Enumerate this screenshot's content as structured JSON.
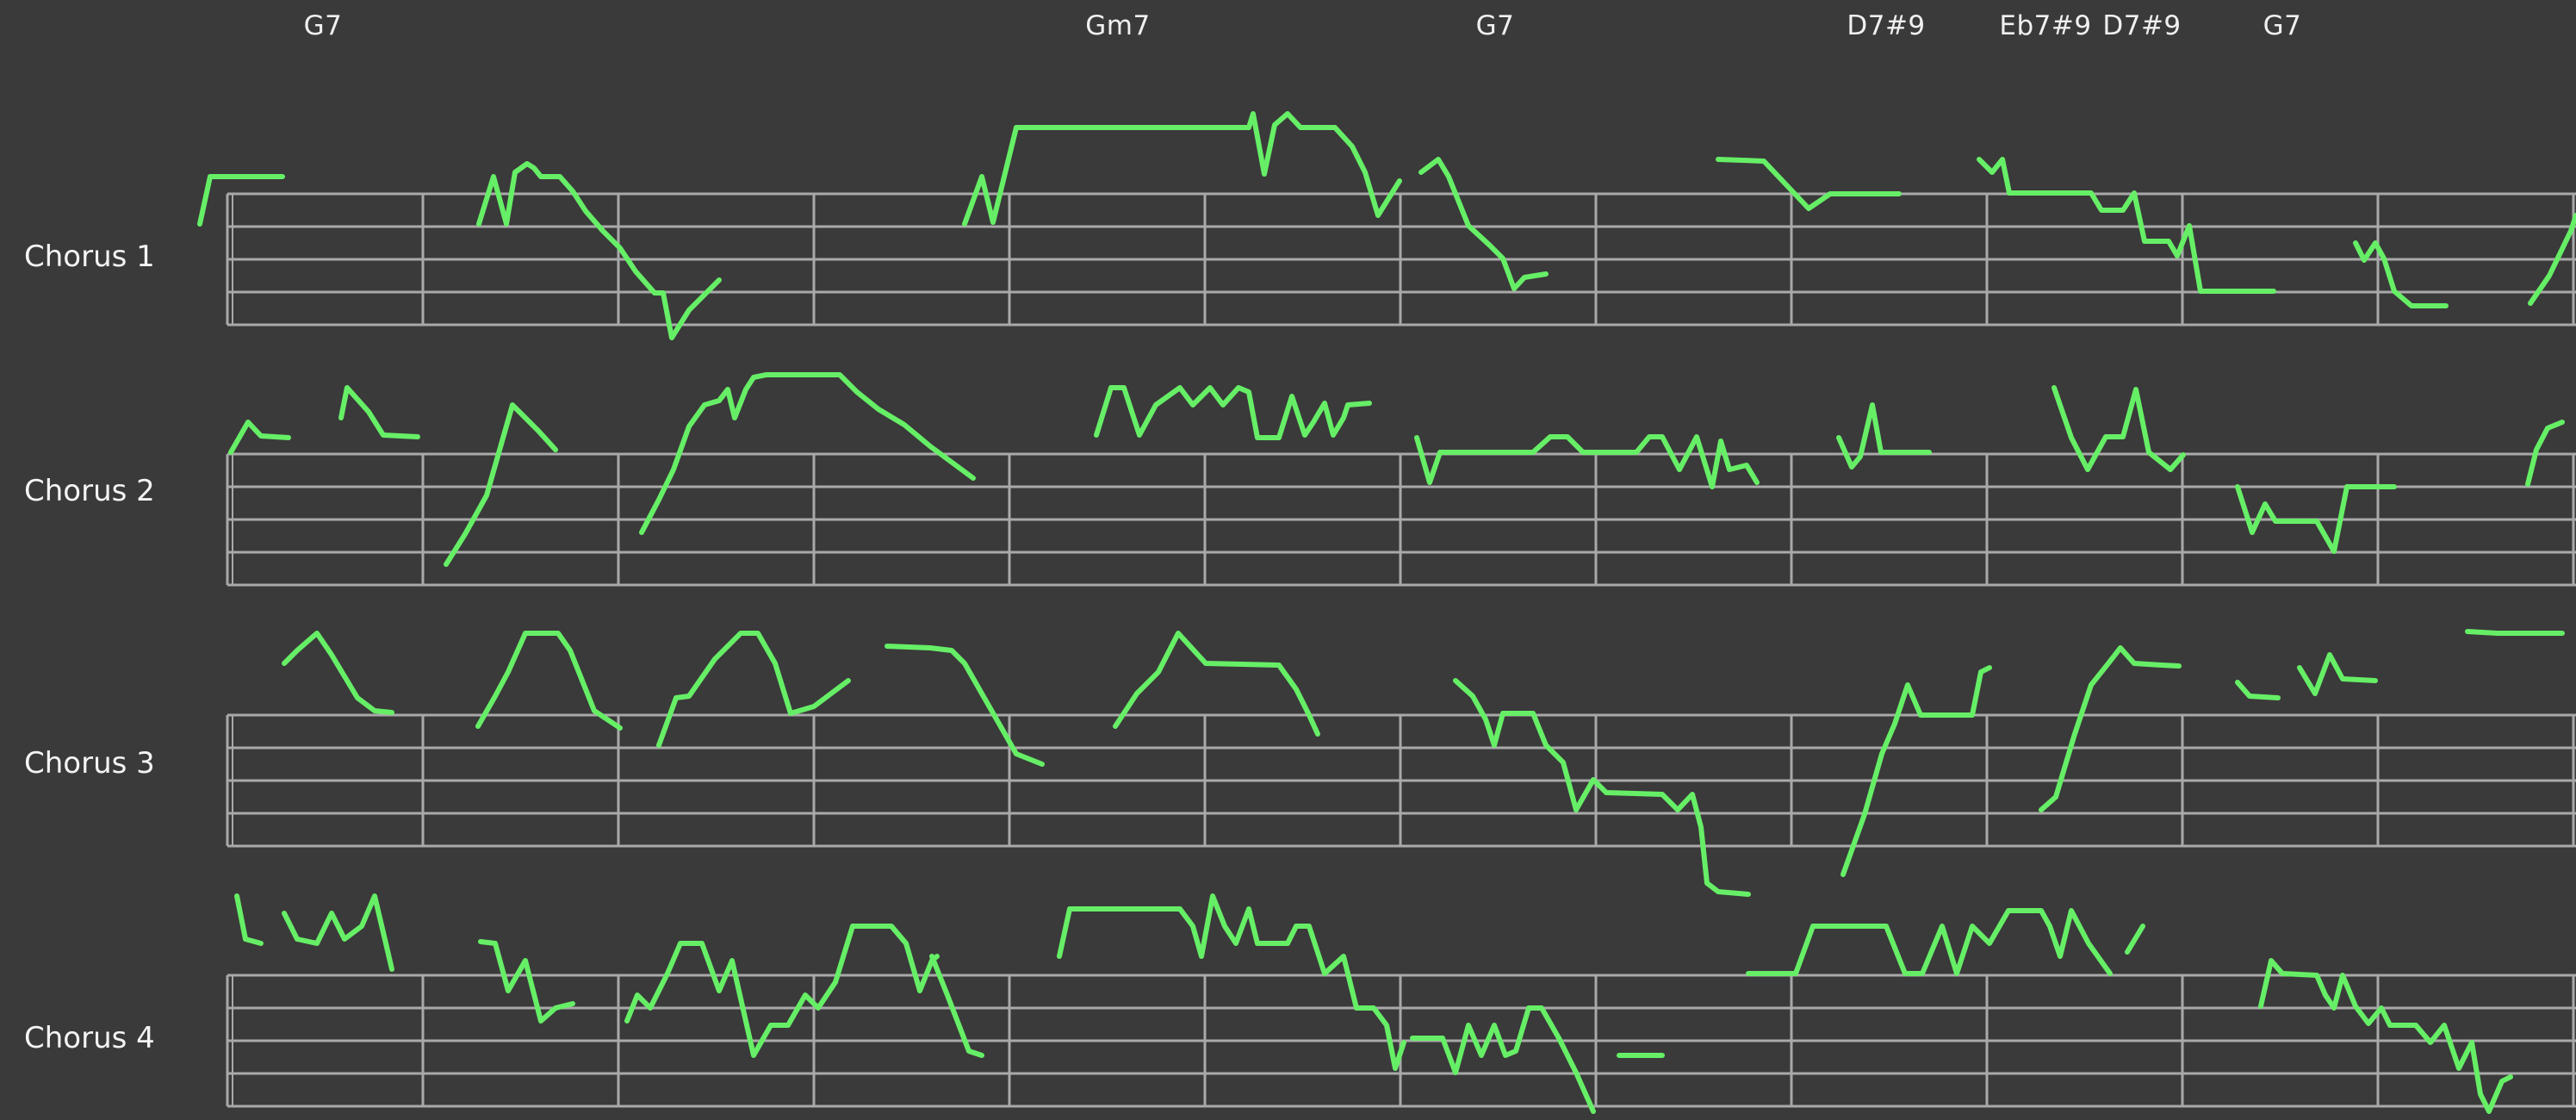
{
  "colors": {
    "background": "#3a3a3a",
    "staff_lines": "#a9a9a9",
    "melody": "#66ef66",
    "text": "#f0f0f0"
  },
  "chords": [
    {
      "label": "G7"
    },
    {
      "label": "Gm7"
    },
    {
      "label": "G7"
    },
    {
      "label": "D7#9"
    },
    {
      "label": "Eb7#9"
    },
    {
      "label": "D7#9"
    },
    {
      "label": "G7"
    }
  ],
  "choruses": [
    {
      "label": "Chorus 1"
    },
    {
      "label": "Chorus 2"
    },
    {
      "label": "Chorus 3"
    },
    {
      "label": "Chorus 4"
    }
  ]
}
